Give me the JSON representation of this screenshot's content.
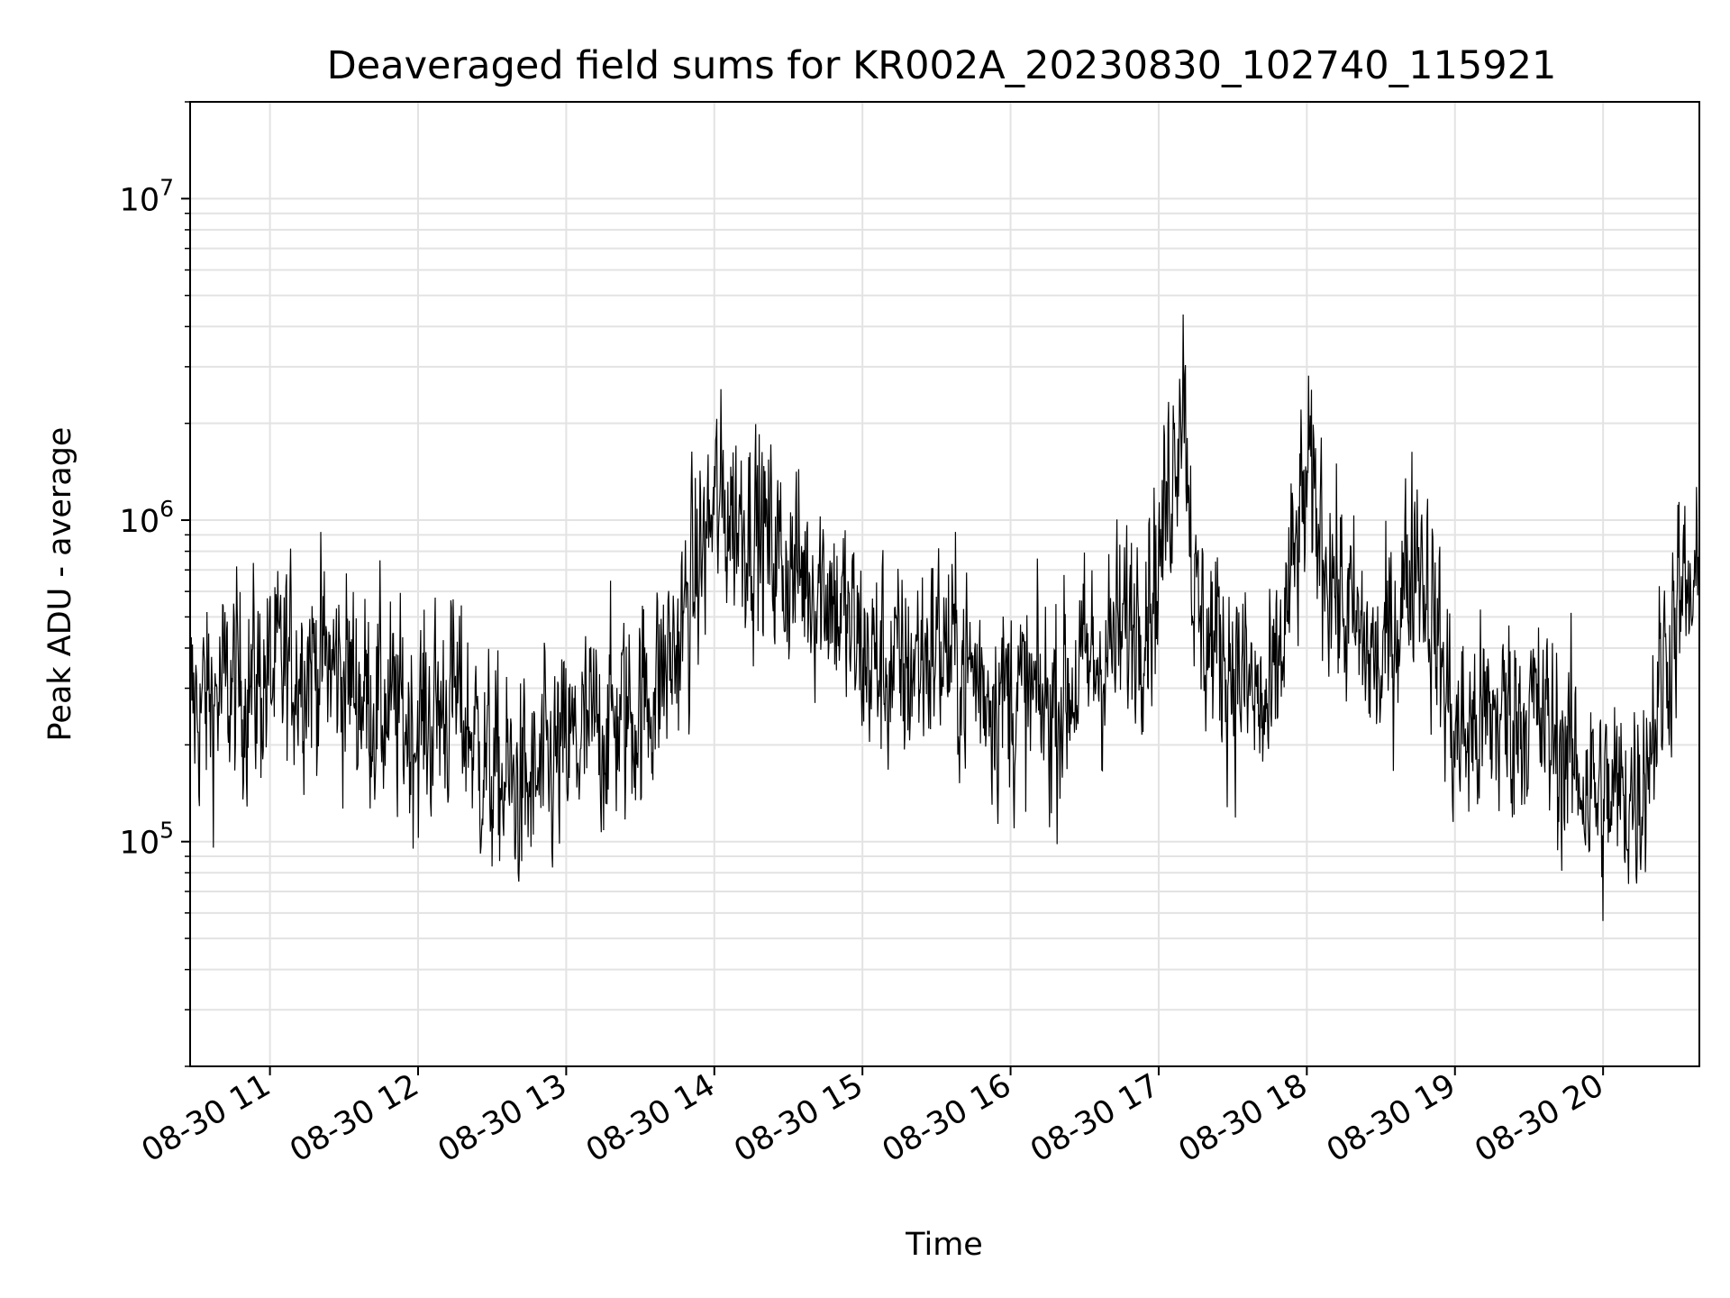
{
  "chart_data": {
    "type": "line",
    "title": "Deaveraged field sums for KR002A_20230830_102740_115921",
    "xlabel": "Time",
    "ylabel": "Peak ADU - average",
    "y_scale": "log",
    "ylim": [
      20000,
      20000000
    ],
    "xlim": [
      "2023-08-30 10:27:40",
      "2023-08-30 20:39:00"
    ],
    "grid": true,
    "line_color": "#000000",
    "x_tick_labels": [
      "08-30 11",
      "08-30 12",
      "08-30 13",
      "08-30 14",
      "08-30 15",
      "08-30 16",
      "08-30 17",
      "08-30 18",
      "08-30 19",
      "08-30 20"
    ],
    "y_tick_labels": [
      {
        "base": "10",
        "exp": "5",
        "value": 100000
      },
      {
        "base": "10",
        "exp": "6",
        "value": 1000000
      },
      {
        "base": "10",
        "exp": "7",
        "value": 10000000
      }
    ],
    "series": [
      {
        "x": [
          "2023-08-30 10:30",
          "2023-08-30 10:45",
          "2023-08-30 11:00",
          "2023-08-30 11:15",
          "2023-08-30 11:30",
          "2023-08-30 11:45",
          "2023-08-30 12:00",
          "2023-08-30 12:15",
          "2023-08-30 12:30",
          "2023-08-30 12:45",
          "2023-08-30 13:00",
          "2023-08-30 13:15",
          "2023-08-30 13:30",
          "2023-08-30 13:45",
          "2023-08-30 14:00",
          "2023-08-30 14:15",
          "2023-08-30 14:30",
          "2023-08-30 14:45",
          "2023-08-30 15:00",
          "2023-08-30 15:15",
          "2023-08-30 15:30",
          "2023-08-30 15:45",
          "2023-08-30 16:00",
          "2023-08-30 16:15",
          "2023-08-30 16:30",
          "2023-08-30 16:45",
          "2023-08-30 17:00",
          "2023-08-30 17:10",
          "2023-08-30 17:15",
          "2023-08-30 17:30",
          "2023-08-30 17:45",
          "2023-08-30 18:00",
          "2023-08-30 18:15",
          "2023-08-30 18:30",
          "2023-08-30 18:45",
          "2023-08-30 19:00",
          "2023-08-30 19:15",
          "2023-08-30 19:30",
          "2023-08-30 19:45",
          "2023-08-30 20:00",
          "2023-08-30 20:15",
          "2023-08-30 20:30"
        ],
        "y": [
          260000,
          300000,
          320000,
          380000,
          330000,
          260000,
          230000,
          280000,
          160000,
          140000,
          190000,
          230000,
          260000,
          400000,
          1100000,
          1000000,
          700000,
          650000,
          380000,
          330000,
          420000,
          330000,
          280000,
          260000,
          340000,
          430000,
          700000,
          3000000,
          480000,
          360000,
          230000,
          1300000,
          520000,
          330000,
          900000,
          210000,
          240000,
          260000,
          190000,
          130000,
          150000,
          560000
        ]
      }
    ]
  }
}
